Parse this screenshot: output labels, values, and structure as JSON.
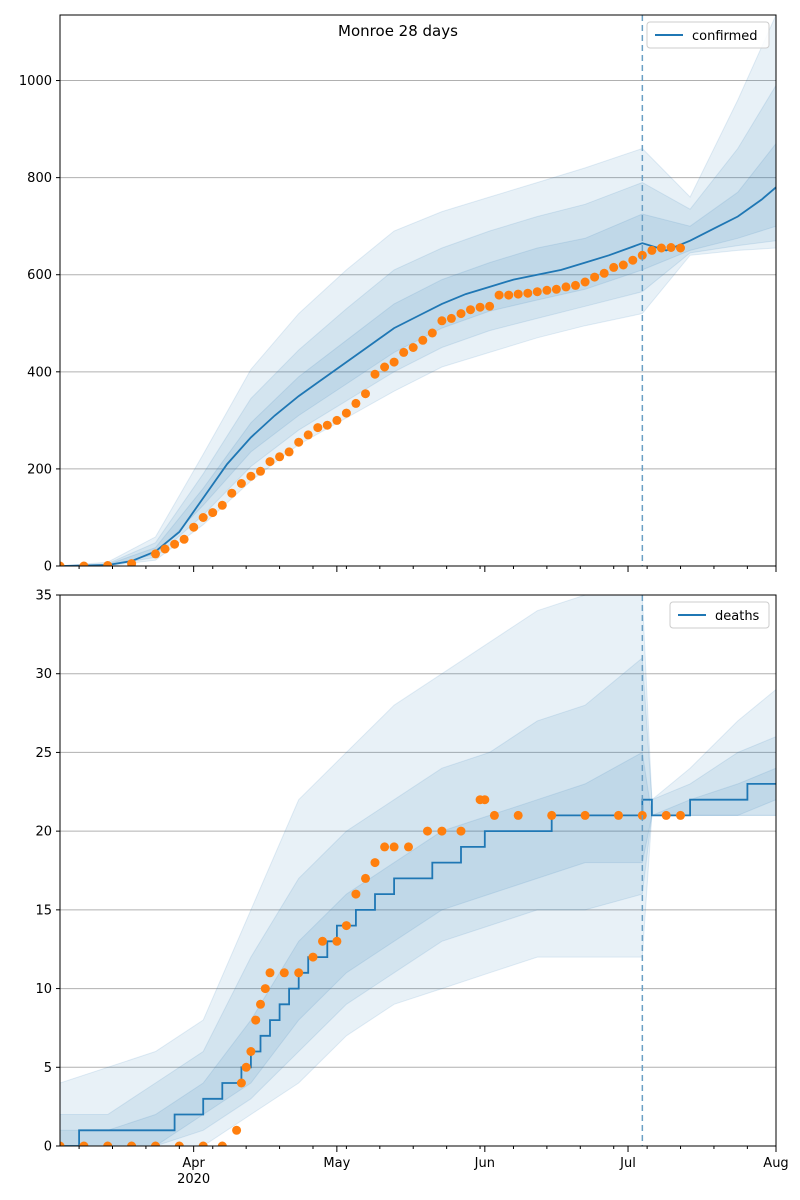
{
  "figure": {
    "title": "Monroe 28 days"
  },
  "colors": {
    "model_line": "#1f77b4",
    "band": "#1f77b4",
    "observed": "#ff7f0e",
    "divider": "#6a9fc4",
    "grid": "#b0b0b0"
  },
  "chart_data": [
    {
      "type": "line",
      "name": "confirmed-panel",
      "x_axis": "date",
      "xlim": [
        "2020-03-04",
        "2020-08-01"
      ],
      "ylim": [
        0,
        1135
      ],
      "yticks": [
        0,
        200,
        400,
        600,
        800,
        1000
      ],
      "xticks": [],
      "grid": "y",
      "legend": {
        "placement": "top-right",
        "entries": [
          "confirmed"
        ]
      },
      "forecast_start": "2020-07-04",
      "series": [
        {
          "name": "confirmed",
          "kind": "model-median",
          "x": [
            "2020-03-04",
            "2020-03-14",
            "2020-03-19",
            "2020-03-24",
            "2020-03-29",
            "2020-04-03",
            "2020-04-08",
            "2020-04-13",
            "2020-04-18",
            "2020-04-23",
            "2020-04-28",
            "2020-05-03",
            "2020-05-08",
            "2020-05-13",
            "2020-05-18",
            "2020-05-23",
            "2020-05-28",
            "2020-06-02",
            "2020-06-07",
            "2020-06-12",
            "2020-06-17",
            "2020-06-22",
            "2020-06-27",
            "2020-07-04",
            "2020-07-09",
            "2020-07-14",
            "2020-07-19",
            "2020-07-24",
            "2020-07-29",
            "2020-08-01"
          ],
          "y": [
            0,
            2,
            10,
            30,
            70,
            140,
            210,
            265,
            310,
            350,
            385,
            420,
            455,
            490,
            515,
            540,
            560,
            575,
            590,
            600,
            610,
            625,
            640,
            665,
            650,
            670,
            695,
            720,
            755,
            780
          ]
        },
        {
          "name": "confirmed-band-50",
          "kind": "band",
          "x": [
            "2020-03-04",
            "2020-03-14",
            "2020-03-24",
            "2020-04-03",
            "2020-04-13",
            "2020-04-23",
            "2020-05-03",
            "2020-05-13",
            "2020-05-23",
            "2020-06-02",
            "2020-06-12",
            "2020-06-22",
            "2020-07-04",
            "2020-07-14",
            "2020-07-24",
            "2020-08-01"
          ],
          "low": [
            0,
            1,
            24,
            125,
            235,
            310,
            375,
            440,
            490,
            525,
            548,
            570,
            610,
            650,
            675,
            700
          ],
          "high": [
            0,
            3,
            38,
            160,
            295,
            390,
            465,
            540,
            590,
            625,
            655,
            675,
            725,
            700,
            770,
            870
          ]
        },
        {
          "name": "confirmed-band-80",
          "kind": "band",
          "x": [
            "2020-03-04",
            "2020-03-14",
            "2020-03-24",
            "2020-04-03",
            "2020-04-13",
            "2020-04-23",
            "2020-05-03",
            "2020-05-13",
            "2020-05-23",
            "2020-06-02",
            "2020-06-12",
            "2020-06-22",
            "2020-07-04",
            "2020-07-14",
            "2020-07-24",
            "2020-08-01"
          ],
          "low": [
            0,
            1,
            18,
            105,
            205,
            280,
            340,
            400,
            450,
            485,
            510,
            535,
            565,
            645,
            660,
            670
          ],
          "high": [
            0,
            5,
            48,
            190,
            345,
            445,
            530,
            610,
            655,
            690,
            720,
            745,
            790,
            735,
            860,
            990
          ]
        },
        {
          "name": "confirmed-band-95",
          "kind": "band",
          "x": [
            "2020-03-04",
            "2020-03-14",
            "2020-03-24",
            "2020-04-03",
            "2020-04-13",
            "2020-04-23",
            "2020-05-03",
            "2020-05-13",
            "2020-05-23",
            "2020-06-02",
            "2020-06-12",
            "2020-06-22",
            "2020-07-04",
            "2020-07-14",
            "2020-07-24",
            "2020-08-01"
          ],
          "low": [
            0,
            0,
            12,
            85,
            175,
            250,
            305,
            360,
            410,
            440,
            470,
            495,
            520,
            640,
            650,
            655
          ],
          "high": [
            0,
            8,
            60,
            230,
            405,
            520,
            610,
            690,
            730,
            760,
            790,
            820,
            860,
            760,
            960,
            1135
          ]
        },
        {
          "name": "confirmed-observed",
          "kind": "observed-points",
          "x": [
            "2020-03-04",
            "2020-03-09",
            "2020-03-14",
            "2020-03-19",
            "2020-03-24",
            "2020-03-26",
            "2020-03-28",
            "2020-03-30",
            "2020-04-01",
            "2020-04-03",
            "2020-04-05",
            "2020-04-07",
            "2020-04-09",
            "2020-04-11",
            "2020-04-13",
            "2020-04-15",
            "2020-04-17",
            "2020-04-19",
            "2020-04-21",
            "2020-04-23",
            "2020-04-25",
            "2020-04-27",
            "2020-04-29",
            "2020-05-01",
            "2020-05-03",
            "2020-05-05",
            "2020-05-07",
            "2020-05-09",
            "2020-05-11",
            "2020-05-13",
            "2020-05-15",
            "2020-05-17",
            "2020-05-19",
            "2020-05-21",
            "2020-05-23",
            "2020-05-25",
            "2020-05-27",
            "2020-05-29",
            "2020-05-31",
            "2020-06-02",
            "2020-06-04",
            "2020-06-06",
            "2020-06-08",
            "2020-06-10",
            "2020-06-12",
            "2020-06-14",
            "2020-06-16",
            "2020-06-18",
            "2020-06-20",
            "2020-06-22",
            "2020-06-24",
            "2020-06-26",
            "2020-06-28",
            "2020-06-30",
            "2020-07-02",
            "2020-07-04",
            "2020-07-06",
            "2020-07-08",
            "2020-07-10",
            "2020-07-12"
          ],
          "y": [
            0,
            0,
            1,
            5,
            25,
            35,
            45,
            55,
            80,
            100,
            110,
            125,
            150,
            170,
            185,
            195,
            215,
            225,
            235,
            255,
            270,
            285,
            290,
            300,
            315,
            335,
            355,
            395,
            410,
            420,
            440,
            450,
            465,
            480,
            505,
            510,
            520,
            528,
            533,
            535,
            558,
            558,
            560,
            562,
            565,
            568,
            570,
            575,
            578,
            585,
            595,
            603,
            615,
            620,
            630,
            640,
            650,
            655,
            656,
            655
          ]
        }
      ]
    },
    {
      "type": "line",
      "name": "deaths-panel",
      "x_axis": "date",
      "xlim": [
        "2020-03-04",
        "2020-08-01"
      ],
      "ylim": [
        0,
        35
      ],
      "yticks": [
        0,
        5,
        10,
        15,
        20,
        25,
        30,
        35
      ],
      "xticks": [
        {
          "date": "2020-04-01",
          "label": "Apr",
          "sublabel": "2020"
        },
        {
          "date": "2020-05-01",
          "label": "May",
          "sublabel": ""
        },
        {
          "date": "2020-06-01",
          "label": "Jun",
          "sublabel": ""
        },
        {
          "date": "2020-07-01",
          "label": "Jul",
          "sublabel": ""
        },
        {
          "date": "2020-08-01",
          "label": "Aug",
          "sublabel": ""
        }
      ],
      "grid": "y",
      "legend": {
        "placement": "top-right",
        "entries": [
          "deaths"
        ]
      },
      "forecast_start": "2020-07-04",
      "series": [
        {
          "name": "deaths",
          "kind": "model-median-step",
          "x": [
            "2020-03-04",
            "2020-03-08",
            "2020-03-28",
            "2020-04-03",
            "2020-04-07",
            "2020-04-11",
            "2020-04-13",
            "2020-04-15",
            "2020-04-17",
            "2020-04-19",
            "2020-04-21",
            "2020-04-23",
            "2020-04-25",
            "2020-04-27",
            "2020-04-29",
            "2020-05-01",
            "2020-05-03",
            "2020-05-05",
            "2020-05-07",
            "2020-05-09",
            "2020-05-13",
            "2020-05-17",
            "2020-05-21",
            "2020-05-27",
            "2020-06-01",
            "2020-06-07",
            "2020-06-15",
            "2020-06-23",
            "2020-07-04",
            "2020-07-06",
            "2020-07-14",
            "2020-07-26",
            "2020-08-01"
          ],
          "y": [
            0,
            1,
            2,
            3,
            4,
            5,
            6,
            7,
            8,
            9,
            10,
            11,
            12,
            12,
            13,
            14,
            14,
            15,
            15,
            16,
            17,
            17,
            18,
            19,
            20,
            20,
            21,
            21,
            22,
            21,
            22,
            23,
            23
          ]
        },
        {
          "name": "deaths-band-50",
          "kind": "band",
          "x": [
            "2020-03-04",
            "2020-03-14",
            "2020-03-24",
            "2020-04-03",
            "2020-04-13",
            "2020-04-23",
            "2020-05-03",
            "2020-05-13",
            "2020-05-23",
            "2020-06-02",
            "2020-06-12",
            "2020-06-22",
            "2020-07-04",
            "2020-07-06",
            "2020-07-14",
            "2020-07-24",
            "2020-08-01"
          ],
          "low": [
            0,
            0,
            0,
            2,
            4,
            8,
            11,
            13,
            15,
            16,
            17,
            18,
            18,
            21,
            21,
            21,
            22
          ],
          "high": [
            1,
            1,
            2,
            4,
            8,
            13,
            16,
            18,
            20,
            21,
            22,
            23,
            25,
            21,
            22,
            23,
            24
          ]
        },
        {
          "name": "deaths-band-80",
          "kind": "band",
          "x": [
            "2020-03-04",
            "2020-03-14",
            "2020-03-24",
            "2020-04-03",
            "2020-04-13",
            "2020-04-23",
            "2020-05-03",
            "2020-05-13",
            "2020-05-23",
            "2020-06-02",
            "2020-06-12",
            "2020-06-22",
            "2020-07-04",
            "2020-07-06",
            "2020-07-14",
            "2020-07-24",
            "2020-08-01"
          ],
          "low": [
            0,
            0,
            0,
            1,
            3,
            6,
            9,
            11,
            13,
            14,
            15,
            15,
            16,
            21,
            21,
            21,
            21
          ],
          "high": [
            2,
            2,
            4,
            6,
            12,
            17,
            20,
            22,
            24,
            25,
            27,
            28,
            31,
            22,
            23,
            25,
            26
          ]
        },
        {
          "name": "deaths-band-95",
          "kind": "band",
          "x": [
            "2020-03-04",
            "2020-03-14",
            "2020-03-24",
            "2020-04-03",
            "2020-04-13",
            "2020-04-23",
            "2020-05-03",
            "2020-05-13",
            "2020-05-23",
            "2020-06-02",
            "2020-06-12",
            "2020-06-22",
            "2020-07-04",
            "2020-07-06",
            "2020-07-14",
            "2020-07-24",
            "2020-08-01"
          ],
          "low": [
            0,
            0,
            0,
            0,
            2,
            4,
            7,
            9,
            10,
            11,
            12,
            12,
            12,
            21,
            21,
            21,
            21
          ],
          "high": [
            4,
            5,
            6,
            8,
            15,
            22,
            25,
            28,
            30,
            32,
            34,
            35,
            35,
            22,
            24,
            27,
            29
          ]
        },
        {
          "name": "deaths-observed",
          "kind": "observed-points",
          "x": [
            "2020-03-04",
            "2020-03-09",
            "2020-03-14",
            "2020-03-19",
            "2020-03-24",
            "2020-03-29",
            "2020-04-03",
            "2020-04-07",
            "2020-04-10",
            "2020-04-11",
            "2020-04-12",
            "2020-04-13",
            "2020-04-14",
            "2020-04-15",
            "2020-04-16",
            "2020-04-17",
            "2020-04-20",
            "2020-04-23",
            "2020-04-26",
            "2020-04-28",
            "2020-05-01",
            "2020-05-03",
            "2020-05-05",
            "2020-05-07",
            "2020-05-09",
            "2020-05-11",
            "2020-05-13",
            "2020-05-16",
            "2020-05-20",
            "2020-05-23",
            "2020-05-27",
            "2020-05-31",
            "2020-06-01",
            "2020-06-03",
            "2020-06-08",
            "2020-06-15",
            "2020-06-22",
            "2020-06-29",
            "2020-07-04",
            "2020-07-09",
            "2020-07-12"
          ],
          "y": [
            0,
            0,
            0,
            0,
            0,
            0,
            0,
            0,
            1,
            4,
            5,
            6,
            8,
            9,
            10,
            11,
            11,
            11,
            12,
            13,
            13,
            14,
            16,
            17,
            18,
            19,
            19,
            19,
            20,
            20,
            20,
            22,
            22,
            21,
            21,
            21,
            21,
            21,
            21,
            21,
            21
          ]
        }
      ]
    }
  ]
}
